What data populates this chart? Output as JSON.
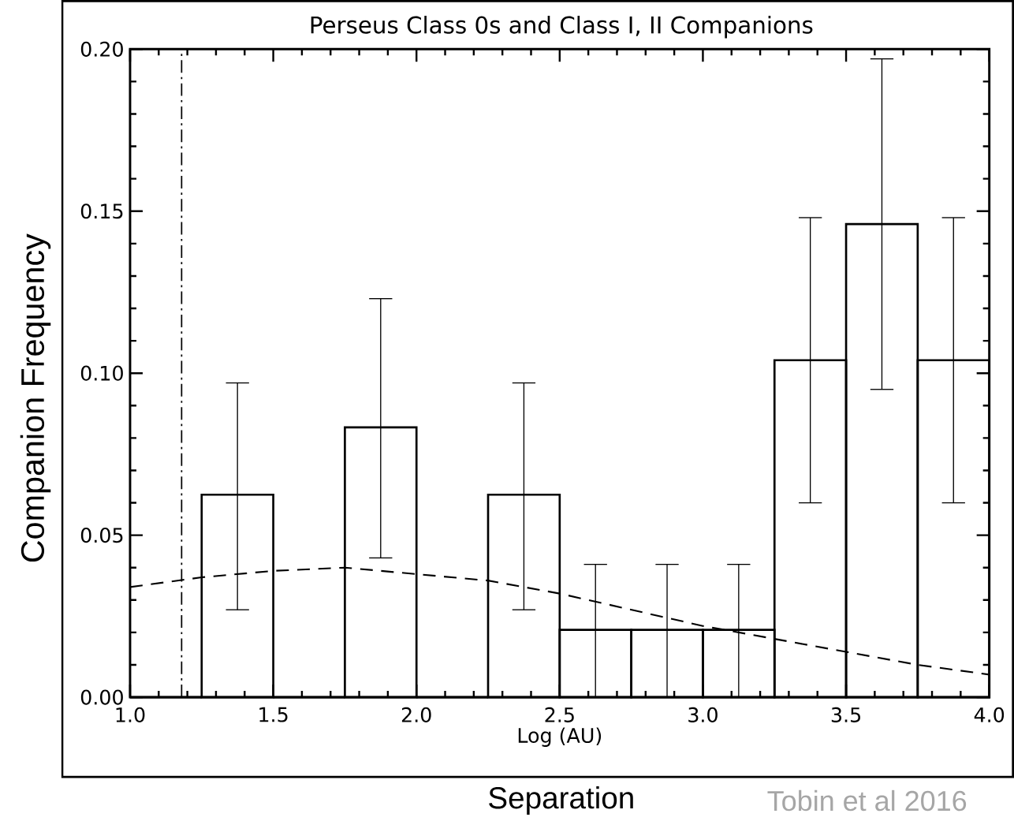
{
  "chart_data": {
    "type": "histogram",
    "title": "Perseus Class 0s and Class I, II Companions",
    "xlabel": "Log (AU)",
    "ylabel": "Companion Frequency",
    "annotations": [
      "Separation",
      "Tobin et al 2016"
    ],
    "xlim": [
      1.0,
      4.0
    ],
    "ylim": [
      0.0,
      0.2
    ],
    "xticks": [
      {
        "value": 1.0,
        "label": "1.0"
      },
      {
        "value": 1.5,
        "label": "1.5"
      },
      {
        "value": 2.0,
        "label": "2.0"
      },
      {
        "value": 2.5,
        "label": "2.5"
      },
      {
        "value": 3.0,
        "label": "3.0"
      },
      {
        "value": 3.5,
        "label": "3.5"
      },
      {
        "value": 4.0,
        "label": "4.0"
      }
    ],
    "yticks": [
      {
        "value": 0.0,
        "label": "0.00"
      },
      {
        "value": 0.05,
        "label": "0.05"
      },
      {
        "value": 0.1,
        "label": "0.10"
      },
      {
        "value": 0.15,
        "label": "0.15"
      },
      {
        "value": 0.2,
        "label": "0.20"
      }
    ],
    "series": [
      {
        "color": "#000000",
        "bins": [
          1.0,
          1.25,
          1.5,
          1.75,
          2.0,
          2.25,
          2.5,
          2.75,
          3.0,
          3.25,
          3.5,
          3.75,
          4.0
        ],
        "values": [
          0,
          0.0625,
          0,
          0.0833,
          0,
          0.0625,
          0.0208,
          0.0208,
          0.0208,
          0.104,
          0.146,
          0.104
        ],
        "errors": [
          null,
          [
            0.027,
            0.097
          ],
          null,
          [
            0.043,
            0.123
          ],
          null,
          [
            0.027,
            0.097
          ],
          [
            0,
            0.041
          ],
          [
            0,
            0.041
          ],
          [
            0,
            0.041
          ],
          [
            0.06,
            0.148
          ],
          [
            0.095,
            0.197
          ],
          [
            0.06,
            0.148
          ]
        ]
      },
      {
        "type": "line",
        "color": "#000000",
        "line_style": "dashed",
        "x": [
          1.0,
          1.25,
          1.5,
          1.75,
          2.0,
          2.25,
          2.5,
          2.75,
          3.0,
          3.25,
          3.5,
          3.75,
          4.0
        ],
        "values": [
          0.034,
          0.037,
          0.039,
          0.04,
          0.038,
          0.036,
          0.032,
          0.027,
          0.022,
          0.018,
          0.014,
          0.01,
          0.007
        ]
      }
    ],
    "ref_lines": [
      {
        "axis": "x",
        "value": 1.18,
        "line_style": "dashdot",
        "color": "#000000"
      }
    ],
    "grid": false
  }
}
